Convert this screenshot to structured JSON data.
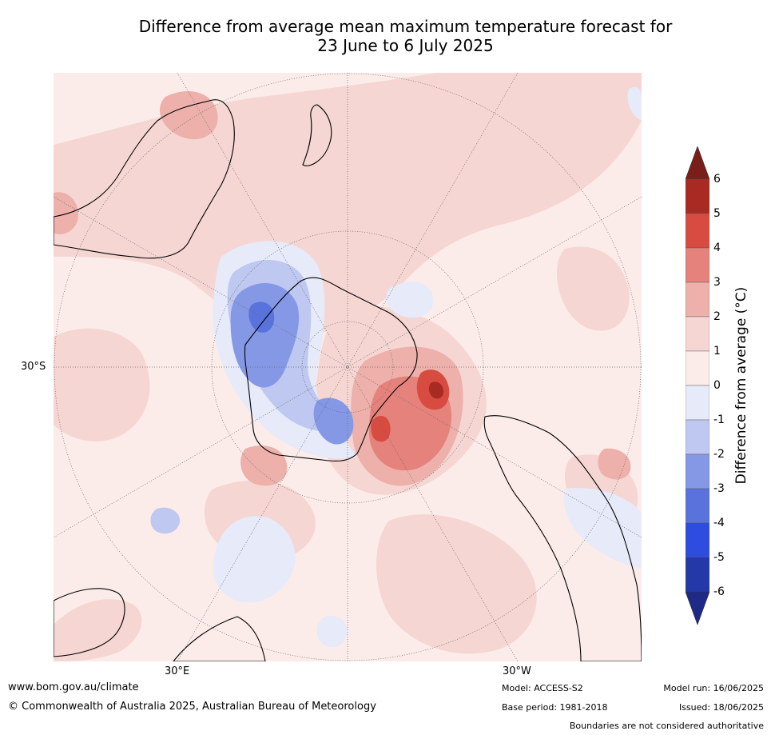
{
  "title": {
    "line1": "Difference from average mean maximum temperature forecast for",
    "line2": "23 June to 6 July 2025"
  },
  "map": {
    "axis_labels": {
      "lat_30s": "30°S",
      "lon_30e": "30°E",
      "lon_30w": "30°W"
    },
    "palette": {
      "ocean_background": "#fbecea",
      "warm_1": "#f5d6d3",
      "warm_2": "#edb0ab",
      "warm_3": "#e5827c",
      "warm_4": "#d84b40",
      "warm_5": "#a92a22",
      "cool_1": "#e6eaf9",
      "cool_2": "#bec8f0",
      "cool_3": "#8598e6",
      "cool_4": "#5a73dc"
    }
  },
  "colorbar": {
    "label": "Difference from average (°C)",
    "ticks": [
      "6",
      "5",
      "4",
      "3",
      "2",
      "1",
      "0",
      "-1",
      "-2",
      "-3",
      "-4",
      "-5",
      "-6"
    ],
    "colors_top_to_bottom": [
      "#a92a22",
      "#d84b40",
      "#e5827c",
      "#edb0ab",
      "#f5d6d3",
      "#fbecea",
      "#e6eaf9",
      "#bec8f0",
      "#8598e6",
      "#5a73dc",
      "#2e4de0",
      "#2438a8"
    ],
    "over_color": "#7a1e19",
    "under_color": "#1e2a85"
  },
  "footer": {
    "website": "www.bom.gov.au/climate",
    "copyright": "© Commonwealth of Australia 2025, Australian Bureau of Meteorology",
    "model": "Model: ACCESS-S2",
    "base_period": "Base period: 1981-2018",
    "model_run": "Model run: 16/06/2025",
    "issued": "Issued: 18/06/2025",
    "disclaimer": "Boundaries are not considered authoritative"
  }
}
